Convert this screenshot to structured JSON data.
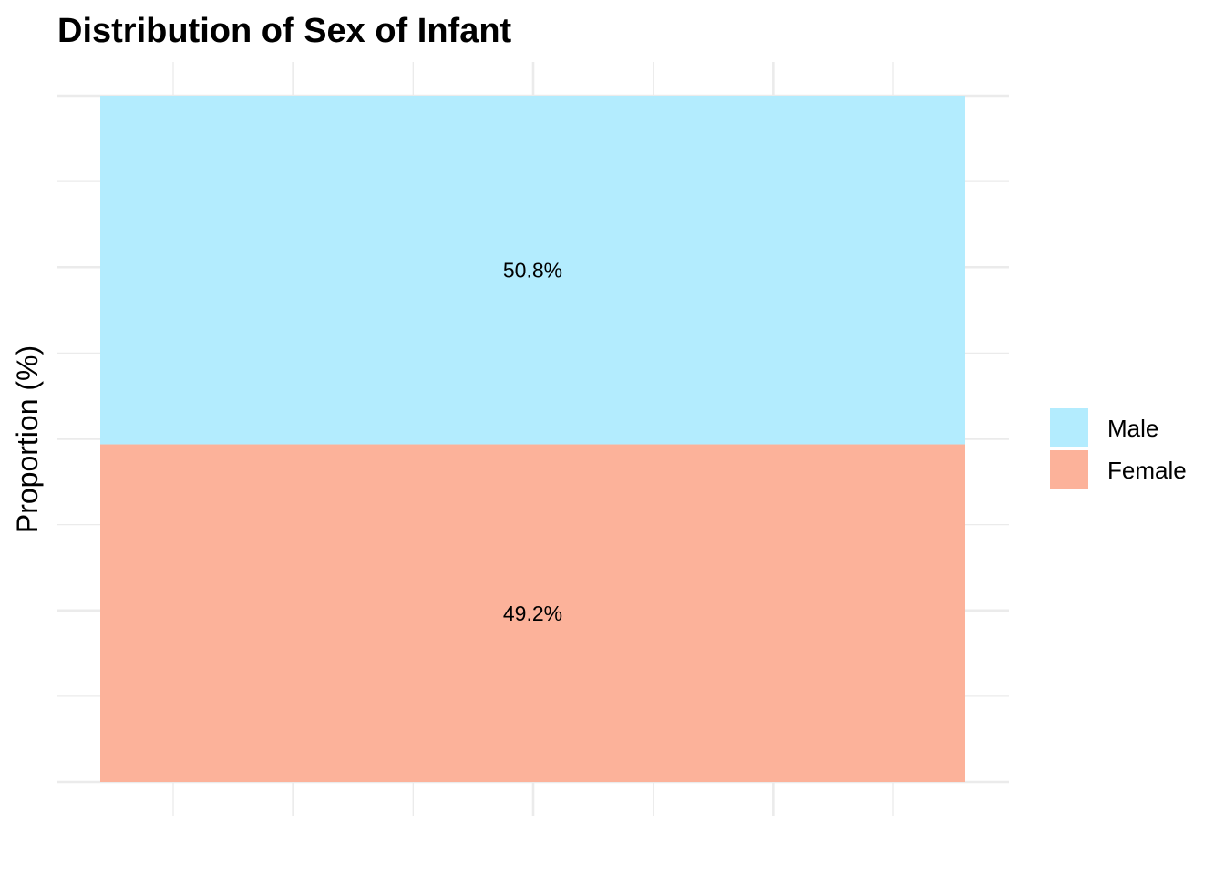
{
  "chart_data": {
    "type": "bar",
    "stacked": true,
    "title": "Distribution of Sex of Infant",
    "xlabel": "",
    "ylabel": "Proportion (%)",
    "ylim": [
      0,
      100
    ],
    "grid": true,
    "legend_position": "right",
    "series": [
      {
        "name": "Female",
        "value": 49.2,
        "label": "49.2%",
        "color": "#fcb29a"
      },
      {
        "name": "Male",
        "value": 50.8,
        "label": "50.8%",
        "color": "#b3ecfe"
      }
    ],
    "legend": [
      {
        "name": "Male",
        "color": "#b3ecfe"
      },
      {
        "name": "Female",
        "color": "#fcb29a"
      }
    ]
  }
}
